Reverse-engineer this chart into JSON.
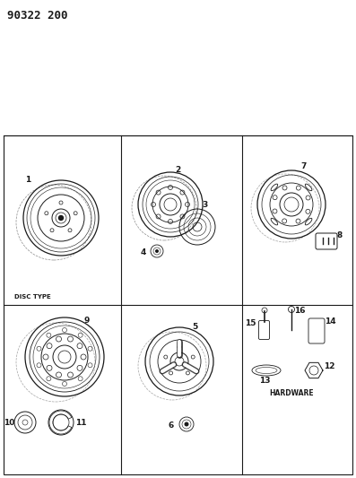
{
  "title": "90322 200",
  "bg_color": "#ffffff",
  "line_color": "#1a1a1a",
  "labels": {
    "disc_type": "DISC TYPE",
    "hardware": "HARDWARE"
  }
}
